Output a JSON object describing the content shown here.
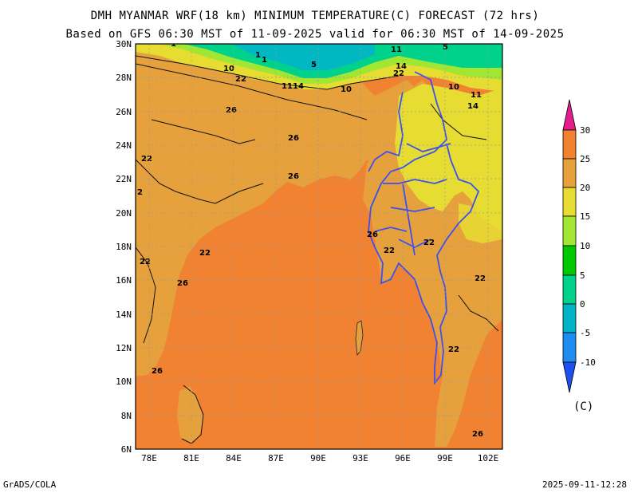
{
  "title_line1": "DMH MYANMAR WRF(18 km) MINIMUM TEMPERATURE(C) FORECAST (72 hrs)",
  "title_line2": "Based on GFS 06:30 MST of 11-09-2025 valid for 06:30 MST of 14-09-2025",
  "footer_left": "GrADS/COLA",
  "footer_right": "2025-09-11-12:28",
  "unit_label": "(C)",
  "lat_labels": [
    "30N",
    "28N",
    "26N",
    "24N",
    "22N",
    "20N",
    "18N",
    "16N",
    "14N",
    "12N",
    "10N",
    "8N",
    "6N"
  ],
  "lon_labels": [
    "78E",
    "81E",
    "84E",
    "87E",
    "90E",
    "93E",
    "96E",
    "99E",
    "102E"
  ],
  "colorbar": {
    "labels": [
      "30",
      "25",
      "20",
      "15",
      "10",
      "5",
      "0",
      "-5",
      "-10"
    ],
    "colors": [
      "#e11e8c",
      "#f08232",
      "#e6a03c",
      "#e6dc32",
      "#a0e632",
      "#00c800",
      "#00d28c",
      "#00b4c8",
      "#1e6ef0"
    ]
  },
  "contour_labels": [
    {
      "text": "1"
    },
    {
      "text": "1"
    },
    {
      "text": "5"
    },
    {
      "text": "11"
    },
    {
      "text": "14"
    },
    {
      "text": "10"
    },
    {
      "text": "22"
    },
    {
      "text": "11"
    },
    {
      "text": "14"
    },
    {
      "text": "10"
    },
    {
      "text": "22"
    },
    {
      "text": "10"
    },
    {
      "text": "11"
    },
    {
      "text": "14"
    },
    {
      "text": "26"
    },
    {
      "text": "26"
    },
    {
      "text": "22"
    },
    {
      "text": "26"
    },
    {
      "text": "2"
    },
    {
      "text": "26"
    },
    {
      "text": "22"
    },
    {
      "text": "22"
    },
    {
      "text": "22"
    },
    {
      "text": "22"
    },
    {
      "text": "26"
    },
    {
      "text": "22"
    },
    {
      "text": "22"
    },
    {
      "text": "26"
    },
    {
      "text": "5"
    },
    {
      "text": "1"
    }
  ],
  "colors": {
    "ocean": "#f08232",
    "land_warm": "#e6a03c",
    "land_cool": "#e6dc32",
    "border": "#3c50f0"
  }
}
